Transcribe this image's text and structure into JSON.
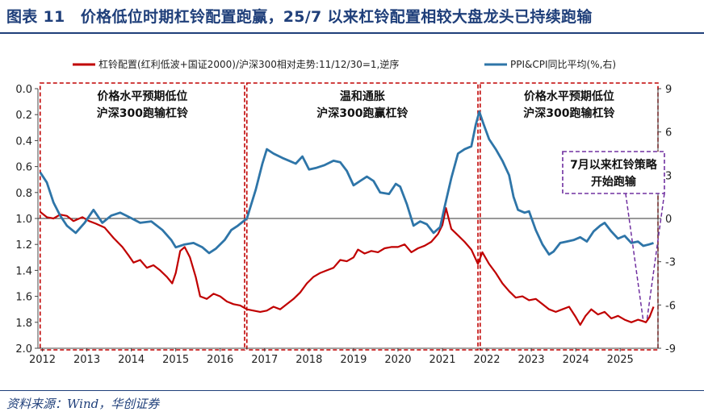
{
  "title": "图表 11　价格低位时期杠铃配置跑赢，25/7 以来杠铃配置相较大盘龙头已持续跑输",
  "source": "资料来源：Wind，华创证券",
  "colors": {
    "red_series": "#c00000",
    "blue_series": "#2e75a8",
    "box": "#c00000",
    "annot": "#7030a0",
    "title": "#1f3f7a"
  },
  "chart_data": {
    "type": "line",
    "legend_position": "top",
    "grid": false,
    "x_range": [
      2011.9,
      2025.85
    ],
    "x_ticks": [
      "2012",
      "2013",
      "2014",
      "2015",
      "2016",
      "2017",
      "2018",
      "2019",
      "2020",
      "2021",
      "2022",
      "2023",
      "2024",
      "2025"
    ],
    "y_left": {
      "min": 0.0,
      "max": 2.0,
      "inverted": true,
      "ticks": [
        "0.0",
        "0.2",
        "0.4",
        "0.6",
        "0.8",
        "1.0",
        "1.2",
        "1.4",
        "1.6",
        "1.8",
        "2.0"
      ]
    },
    "y_right": {
      "min": -9,
      "max": 9,
      "ticks": [
        "9",
        "6",
        "3",
        "0",
        "-3",
        "-6",
        "-9"
      ]
    },
    "series": [
      {
        "name": "杠铃配置(红利低波+国证2000)/沪深300相对走势:11/12/30=1,逆序",
        "axis": "left",
        "points": [
          [
            2011.95,
            0.95
          ],
          [
            2012.1,
            0.99
          ],
          [
            2012.25,
            1.0
          ],
          [
            2012.4,
            0.97
          ],
          [
            2012.55,
            0.98
          ],
          [
            2012.7,
            1.02
          ],
          [
            2012.9,
            0.99
          ],
          [
            2013.05,
            1.02
          ],
          [
            2013.2,
            1.04
          ],
          [
            2013.4,
            1.07
          ],
          [
            2013.6,
            1.15
          ],
          [
            2013.8,
            1.22
          ],
          [
            2013.95,
            1.29
          ],
          [
            2014.05,
            1.34
          ],
          [
            2014.2,
            1.32
          ],
          [
            2014.35,
            1.38
          ],
          [
            2014.5,
            1.36
          ],
          [
            2014.65,
            1.4
          ],
          [
            2014.8,
            1.45
          ],
          [
            2014.92,
            1.5
          ],
          [
            2015.0,
            1.42
          ],
          [
            2015.1,
            1.25
          ],
          [
            2015.2,
            1.22
          ],
          [
            2015.32,
            1.3
          ],
          [
            2015.45,
            1.45
          ],
          [
            2015.55,
            1.6
          ],
          [
            2015.7,
            1.62
          ],
          [
            2015.85,
            1.58
          ],
          [
            2016.0,
            1.6
          ],
          [
            2016.15,
            1.64
          ],
          [
            2016.3,
            1.66
          ],
          [
            2016.45,
            1.67
          ],
          [
            2016.6,
            1.7
          ],
          [
            2016.75,
            1.71
          ],
          [
            2016.9,
            1.72
          ],
          [
            2017.05,
            1.71
          ],
          [
            2017.2,
            1.68
          ],
          [
            2017.35,
            1.7
          ],
          [
            2017.5,
            1.66
          ],
          [
            2017.65,
            1.62
          ],
          [
            2017.8,
            1.57
          ],
          [
            2017.95,
            1.5
          ],
          [
            2018.1,
            1.45
          ],
          [
            2018.25,
            1.42
          ],
          [
            2018.4,
            1.4
          ],
          [
            2018.55,
            1.38
          ],
          [
            2018.7,
            1.32
          ],
          [
            2018.85,
            1.33
          ],
          [
            2019.0,
            1.3
          ],
          [
            2019.1,
            1.24
          ],
          [
            2019.25,
            1.27
          ],
          [
            2019.4,
            1.25
          ],
          [
            2019.55,
            1.26
          ],
          [
            2019.7,
            1.23
          ],
          [
            2019.85,
            1.22
          ],
          [
            2020.0,
            1.22
          ],
          [
            2020.15,
            1.2
          ],
          [
            2020.3,
            1.26
          ],
          [
            2020.45,
            1.23
          ],
          [
            2020.6,
            1.21
          ],
          [
            2020.75,
            1.18
          ],
          [
            2020.9,
            1.12
          ],
          [
            2021.0,
            1.05
          ],
          [
            2021.08,
            0.92
          ],
          [
            2021.2,
            1.08
          ],
          [
            2021.35,
            1.13
          ],
          [
            2021.5,
            1.18
          ],
          [
            2021.65,
            1.24
          ],
          [
            2021.8,
            1.35
          ],
          [
            2021.9,
            1.26
          ],
          [
            2022.05,
            1.35
          ],
          [
            2022.2,
            1.42
          ],
          [
            2022.35,
            1.5
          ],
          [
            2022.5,
            1.56
          ],
          [
            2022.65,
            1.61
          ],
          [
            2022.8,
            1.6
          ],
          [
            2022.95,
            1.63
          ],
          [
            2023.1,
            1.62
          ],
          [
            2023.25,
            1.66
          ],
          [
            2023.4,
            1.7
          ],
          [
            2023.55,
            1.72
          ],
          [
            2023.7,
            1.7
          ],
          [
            2023.85,
            1.68
          ],
          [
            2024.0,
            1.76
          ],
          [
            2024.1,
            1.82
          ],
          [
            2024.22,
            1.75
          ],
          [
            2024.35,
            1.7
          ],
          [
            2024.5,
            1.74
          ],
          [
            2024.65,
            1.72
          ],
          [
            2024.8,
            1.77
          ],
          [
            2024.95,
            1.75
          ],
          [
            2025.1,
            1.78
          ],
          [
            2025.25,
            1.8
          ],
          [
            2025.4,
            1.78
          ],
          [
            2025.5,
            1.79
          ],
          [
            2025.58,
            1.8
          ],
          [
            2025.66,
            1.76
          ],
          [
            2025.75,
            1.68
          ]
        ]
      },
      {
        "name": "PPI&CPI同比平均(%,右)",
        "axis": "right",
        "points": [
          [
            2011.95,
            3.2
          ],
          [
            2012.1,
            2.5
          ],
          [
            2012.25,
            1.1
          ],
          [
            2012.4,
            0.2
          ],
          [
            2012.55,
            -0.5
          ],
          [
            2012.75,
            -1.0
          ],
          [
            2012.95,
            -0.3
          ],
          [
            2013.15,
            0.6
          ],
          [
            2013.35,
            -0.3
          ],
          [
            2013.55,
            0.2
          ],
          [
            2013.75,
            0.4
          ],
          [
            2013.95,
            0.1
          ],
          [
            2014.2,
            -0.3
          ],
          [
            2014.45,
            -0.2
          ],
          [
            2014.7,
            -0.8
          ],
          [
            2014.9,
            -1.5
          ],
          [
            2015.0,
            -2.0
          ],
          [
            2015.2,
            -1.8
          ],
          [
            2015.4,
            -1.7
          ],
          [
            2015.6,
            -2.0
          ],
          [
            2015.75,
            -2.4
          ],
          [
            2015.9,
            -2.1
          ],
          [
            2016.1,
            -1.5
          ],
          [
            2016.25,
            -0.8
          ],
          [
            2016.4,
            -0.5
          ],
          [
            2016.6,
            0.0
          ],
          [
            2016.8,
            2.0
          ],
          [
            2016.95,
            3.8
          ],
          [
            2017.05,
            4.8
          ],
          [
            2017.2,
            4.5
          ],
          [
            2017.4,
            4.2
          ],
          [
            2017.55,
            4.0
          ],
          [
            2017.7,
            3.8
          ],
          [
            2017.85,
            4.3
          ],
          [
            2018.0,
            3.4
          ],
          [
            2018.15,
            3.5
          ],
          [
            2018.35,
            3.7
          ],
          [
            2018.55,
            4.0
          ],
          [
            2018.7,
            3.9
          ],
          [
            2018.85,
            3.3
          ],
          [
            2019.0,
            2.3
          ],
          [
            2019.15,
            2.6
          ],
          [
            2019.3,
            2.9
          ],
          [
            2019.45,
            2.6
          ],
          [
            2019.6,
            1.8
          ],
          [
            2019.8,
            1.7
          ],
          [
            2019.95,
            2.4
          ],
          [
            2020.05,
            2.2
          ],
          [
            2020.2,
            1.0
          ],
          [
            2020.35,
            -0.5
          ],
          [
            2020.5,
            -0.2
          ],
          [
            2020.65,
            -0.4
          ],
          [
            2020.8,
            -1.0
          ],
          [
            2020.95,
            -0.6
          ],
          [
            2021.05,
            0.8
          ],
          [
            2021.2,
            2.8
          ],
          [
            2021.35,
            4.5
          ],
          [
            2021.5,
            4.8
          ],
          [
            2021.65,
            5.0
          ],
          [
            2021.75,
            6.5
          ],
          [
            2021.83,
            7.4
          ],
          [
            2021.92,
            6.6
          ],
          [
            2022.05,
            5.5
          ],
          [
            2022.2,
            4.8
          ],
          [
            2022.35,
            4.0
          ],
          [
            2022.5,
            3.0
          ],
          [
            2022.6,
            1.5
          ],
          [
            2022.7,
            0.6
          ],
          [
            2022.85,
            0.4
          ],
          [
            2022.95,
            0.5
          ],
          [
            2023.1,
            -0.8
          ],
          [
            2023.25,
            -1.8
          ],
          [
            2023.4,
            -2.5
          ],
          [
            2023.5,
            -2.3
          ],
          [
            2023.65,
            -1.7
          ],
          [
            2023.8,
            -1.6
          ],
          [
            2023.95,
            -1.5
          ],
          [
            2024.1,
            -1.3
          ],
          [
            2024.25,
            -1.6
          ],
          [
            2024.4,
            -0.9
          ],
          [
            2024.55,
            -0.5
          ],
          [
            2024.65,
            -0.3
          ],
          [
            2024.8,
            -0.9
          ],
          [
            2024.95,
            -1.4
          ],
          [
            2025.1,
            -1.2
          ],
          [
            2025.25,
            -1.7
          ],
          [
            2025.4,
            -1.6
          ],
          [
            2025.52,
            -1.9
          ],
          [
            2025.65,
            -1.8
          ],
          [
            2025.75,
            -1.7
          ]
        ]
      }
    ],
    "reference_line": {
      "axis": "left",
      "value": 1.0
    },
    "regions": [
      {
        "x": [
          2011.95,
          2016.55
        ],
        "label_lines": [
          "价格水平预期低位",
          "沪深300跑输杠铃"
        ]
      },
      {
        "x": [
          2016.6,
          2021.8
        ],
        "label_lines": [
          "温和通胀",
          "沪深300跑赢杠铃"
        ]
      },
      {
        "x": [
          2021.85,
          2025.85
        ],
        "label_lines": [
          "价格水平预期低位",
          "沪深300跑输杠铃"
        ]
      }
    ],
    "annotation": {
      "label_lines": [
        "7月以来杠铃策略",
        "开始跑输"
      ],
      "anchor_x": 2024.85,
      "target": [
        2025.55,
        1.8
      ]
    }
  }
}
